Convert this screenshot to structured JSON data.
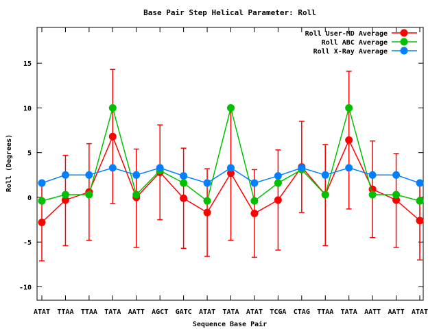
{
  "chart_data": {
    "type": "line",
    "title": "Base Pair Step Helical Parameter: Roll",
    "xlabel": "Sequence Base Pair",
    "ylabel": "Roll (Degrees)",
    "categories": [
      "ATAT",
      "TTAA",
      "TTAA",
      "TATA",
      "AATT",
      "AGCT",
      "GATC",
      "ATAT",
      "TATA",
      "ATAT",
      "TCGA",
      "CTAG",
      "TTAA",
      "TATA",
      "AATT",
      "AATT",
      "ATAT"
    ],
    "ylim": [
      -11.5,
      19
    ],
    "yticks": [
      -10,
      -5,
      0,
      5,
      10,
      15
    ],
    "legend_position": "top-right",
    "grid": false,
    "series": [
      {
        "name": "Roll User-MD Average",
        "color": "#ff0000",
        "values": [
          -2.8,
          -0.3,
          0.6,
          6.8,
          0.0,
          2.8,
          -0.1,
          -1.7,
          2.7,
          -1.8,
          -0.3,
          3.4,
          0.3,
          6.4,
          0.9,
          -0.3,
          -2.6
        ],
        "error_low": [
          -7.1,
          -5.4,
          -4.8,
          -0.7,
          -5.6,
          -2.5,
          -5.7,
          -6.6,
          -4.8,
          -6.7,
          -5.9,
          -1.7,
          -5.4,
          -1.3,
          -4.5,
          -5.6,
          -7.0
        ],
        "error_high": [
          1.5,
          4.7,
          6.0,
          14.3,
          5.4,
          8.1,
          5.5,
          3.2,
          10.2,
          3.1,
          5.3,
          8.5,
          5.9,
          14.1,
          6.3,
          4.9,
          1.8
        ]
      },
      {
        "name": "Roll ABC Average",
        "color": "#00c000",
        "values": [
          -0.4,
          0.3,
          0.3,
          10.0,
          0.3,
          3.0,
          1.6,
          -0.4,
          10.0,
          -0.4,
          1.6,
          3.1,
          0.3,
          10.0,
          0.3,
          0.3,
          -0.4
        ]
      },
      {
        "name": "Roll X-Ray Average",
        "color": "#0080ff",
        "values": [
          1.6,
          2.5,
          2.5,
          3.3,
          2.5,
          3.3,
          2.4,
          1.6,
          3.3,
          1.6,
          2.4,
          3.3,
          2.5,
          3.3,
          2.5,
          2.5,
          1.6
        ]
      }
    ]
  }
}
